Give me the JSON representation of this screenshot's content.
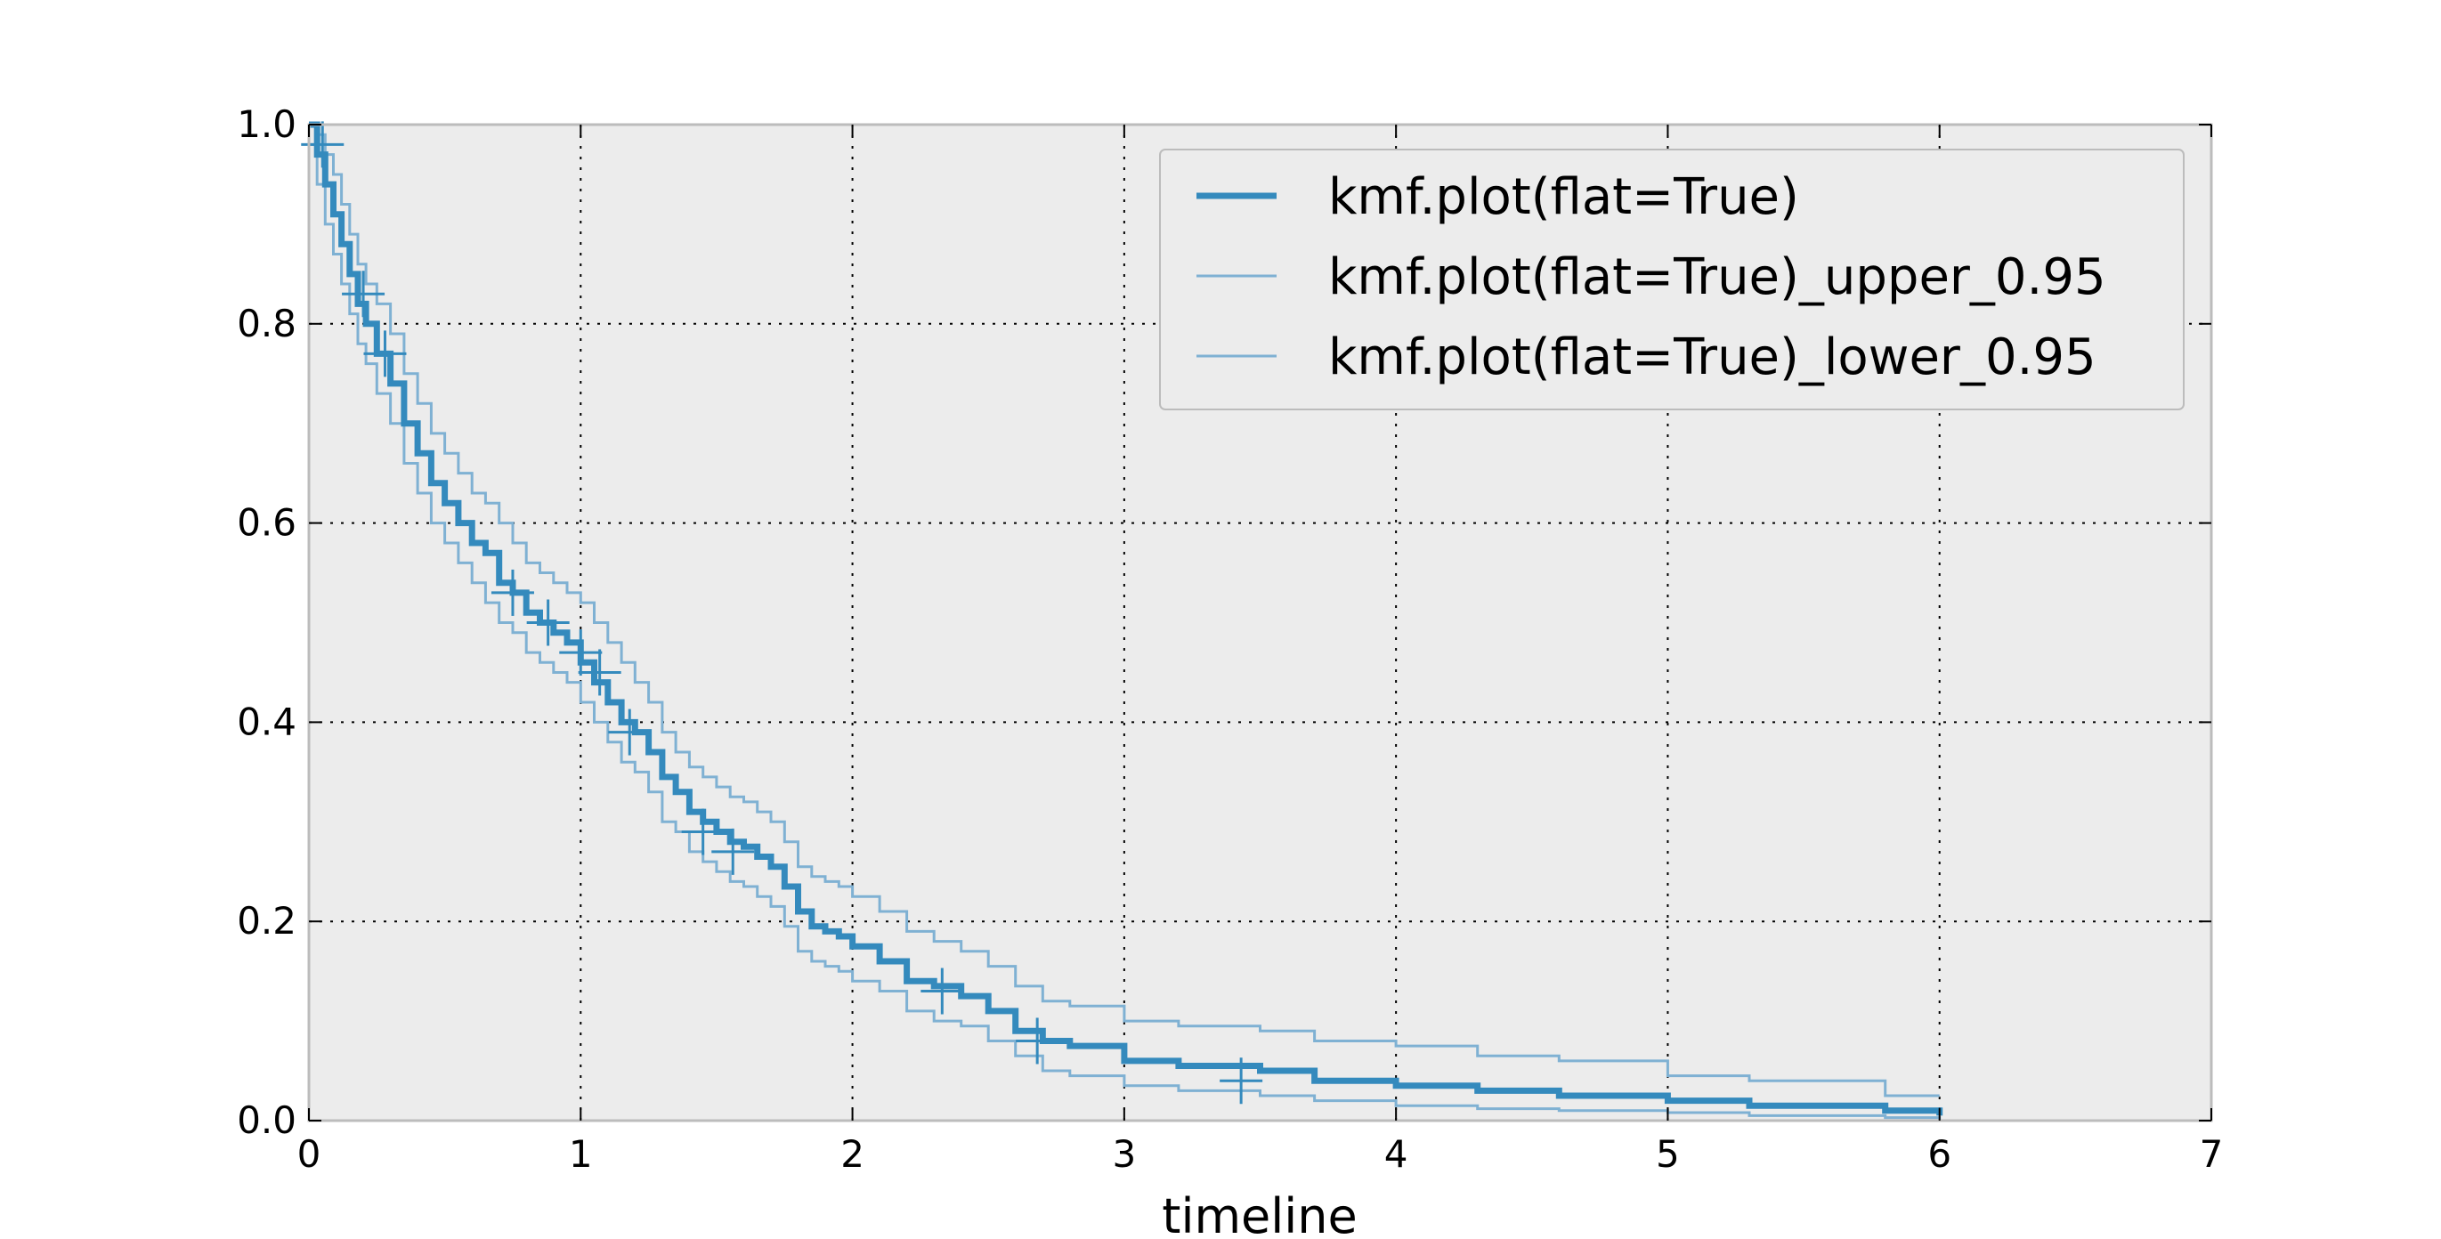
{
  "chart_data": {
    "type": "line",
    "title": "",
    "xlabel": "timeline",
    "ylabel": "",
    "xlim": [
      0,
      7
    ],
    "ylim": [
      0,
      1.0
    ],
    "grid": true,
    "legend_position": "top-right",
    "x_ticks": [
      0,
      1,
      2,
      3,
      4,
      5,
      6,
      7
    ],
    "x_tick_labels": [
      "0",
      "1",
      "2",
      "3",
      "4",
      "5",
      "6",
      "7"
    ],
    "y_ticks": [
      0.0,
      0.2,
      0.4,
      0.6,
      0.8,
      1.0
    ],
    "y_tick_labels": [
      "0.0",
      "0.2",
      "0.4",
      "0.6",
      "0.8",
      "1.0"
    ],
    "colors": {
      "main": "#348abd",
      "ci": "#7fb1d3",
      "background": "#ececec",
      "frame": "#bcbcbc"
    },
    "series": [
      {
        "name": "kmf.plot(flat=True)",
        "role": "estimate",
        "step": "post",
        "x": [
          0,
          0.03,
          0.06,
          0.09,
          0.12,
          0.15,
          0.18,
          0.21,
          0.25,
          0.3,
          0.35,
          0.4,
          0.45,
          0.5,
          0.55,
          0.6,
          0.65,
          0.7,
          0.75,
          0.8,
          0.85,
          0.9,
          0.95,
          1.0,
          1.05,
          1.1,
          1.15,
          1.2,
          1.25,
          1.3,
          1.35,
          1.4,
          1.45,
          1.5,
          1.55,
          1.6,
          1.65,
          1.7,
          1.75,
          1.8,
          1.85,
          1.9,
          1.95,
          2.0,
          2.1,
          2.2,
          2.3,
          2.4,
          2.5,
          2.6,
          2.7,
          2.8,
          3.0,
          3.2,
          3.5,
          3.7,
          4.0,
          4.3,
          4.6,
          5.0,
          5.3,
          5.8,
          6.0
        ],
        "y": [
          1.0,
          0.97,
          0.94,
          0.91,
          0.88,
          0.85,
          0.82,
          0.8,
          0.77,
          0.74,
          0.7,
          0.67,
          0.64,
          0.62,
          0.6,
          0.58,
          0.57,
          0.54,
          0.53,
          0.51,
          0.5,
          0.49,
          0.48,
          0.46,
          0.44,
          0.42,
          0.4,
          0.39,
          0.37,
          0.345,
          0.33,
          0.31,
          0.3,
          0.29,
          0.28,
          0.275,
          0.265,
          0.255,
          0.235,
          0.21,
          0.195,
          0.19,
          0.185,
          0.175,
          0.16,
          0.14,
          0.135,
          0.125,
          0.11,
          0.09,
          0.08,
          0.075,
          0.06,
          0.055,
          0.05,
          0.04,
          0.035,
          0.03,
          0.025,
          0.02,
          0.015,
          0.01,
          0.005
        ]
      },
      {
        "name": "kmf.plot(flat=True)_upper_0.95",
        "role": "upper",
        "step": "post",
        "x": [
          0,
          0.03,
          0.06,
          0.09,
          0.12,
          0.15,
          0.18,
          0.21,
          0.25,
          0.3,
          0.35,
          0.4,
          0.45,
          0.5,
          0.55,
          0.6,
          0.65,
          0.7,
          0.75,
          0.8,
          0.85,
          0.9,
          0.95,
          1.0,
          1.05,
          1.1,
          1.15,
          1.2,
          1.25,
          1.3,
          1.35,
          1.4,
          1.45,
          1.5,
          1.55,
          1.6,
          1.65,
          1.7,
          1.75,
          1.8,
          1.85,
          1.9,
          1.95,
          2.0,
          2.1,
          2.2,
          2.3,
          2.4,
          2.5,
          2.6,
          2.7,
          2.8,
          3.0,
          3.2,
          3.5,
          3.7,
          4.0,
          4.3,
          4.6,
          5.0,
          5.3,
          5.8,
          6.0
        ],
        "y": [
          1.0,
          0.99,
          0.97,
          0.95,
          0.92,
          0.89,
          0.86,
          0.84,
          0.82,
          0.79,
          0.75,
          0.72,
          0.69,
          0.67,
          0.65,
          0.63,
          0.62,
          0.6,
          0.58,
          0.56,
          0.55,
          0.54,
          0.53,
          0.52,
          0.5,
          0.48,
          0.46,
          0.44,
          0.42,
          0.39,
          0.37,
          0.355,
          0.345,
          0.335,
          0.325,
          0.32,
          0.31,
          0.3,
          0.28,
          0.255,
          0.245,
          0.24,
          0.235,
          0.225,
          0.21,
          0.19,
          0.18,
          0.17,
          0.155,
          0.135,
          0.12,
          0.115,
          0.1,
          0.095,
          0.09,
          0.08,
          0.075,
          0.065,
          0.06,
          0.045,
          0.04,
          0.025,
          0.025
        ]
      },
      {
        "name": "kmf.plot(flat=True)_lower_0.95",
        "role": "lower",
        "step": "post",
        "x": [
          0,
          0.03,
          0.06,
          0.09,
          0.12,
          0.15,
          0.18,
          0.21,
          0.25,
          0.3,
          0.35,
          0.4,
          0.45,
          0.5,
          0.55,
          0.6,
          0.65,
          0.7,
          0.75,
          0.8,
          0.85,
          0.9,
          0.95,
          1.0,
          1.05,
          1.1,
          1.15,
          1.2,
          1.25,
          1.3,
          1.35,
          1.4,
          1.45,
          1.5,
          1.55,
          1.6,
          1.65,
          1.7,
          1.75,
          1.8,
          1.85,
          1.9,
          1.95,
          2.0,
          2.1,
          2.2,
          2.3,
          2.4,
          2.5,
          2.6,
          2.7,
          2.8,
          3.0,
          3.2,
          3.5,
          3.7,
          4.0,
          4.3,
          4.6,
          5.0,
          5.3,
          5.8,
          6.0
        ],
        "y": [
          0.98,
          0.94,
          0.9,
          0.87,
          0.84,
          0.81,
          0.78,
          0.76,
          0.73,
          0.7,
          0.66,
          0.63,
          0.6,
          0.58,
          0.56,
          0.54,
          0.52,
          0.5,
          0.49,
          0.47,
          0.46,
          0.45,
          0.44,
          0.42,
          0.4,
          0.38,
          0.36,
          0.35,
          0.33,
          0.3,
          0.29,
          0.27,
          0.26,
          0.25,
          0.24,
          0.235,
          0.225,
          0.215,
          0.195,
          0.17,
          0.16,
          0.155,
          0.15,
          0.14,
          0.13,
          0.11,
          0.1,
          0.095,
          0.08,
          0.065,
          0.05,
          0.045,
          0.035,
          0.03,
          0.025,
          0.02,
          0.015,
          0.012,
          0.01,
          0.008,
          0.005,
          0.003,
          0.0
        ]
      }
    ],
    "censor_marks": {
      "x": [
        0.05,
        0.2,
        0.28,
        0.75,
        0.88,
        1.0,
        1.07,
        1.18,
        1.45,
        1.56,
        2.33,
        2.68,
        3.43
      ],
      "y": [
        0.98,
        0.83,
        0.77,
        0.53,
        0.5,
        0.47,
        0.45,
        0.39,
        0.29,
        0.27,
        0.13,
        0.08,
        0.04
      ]
    }
  }
}
